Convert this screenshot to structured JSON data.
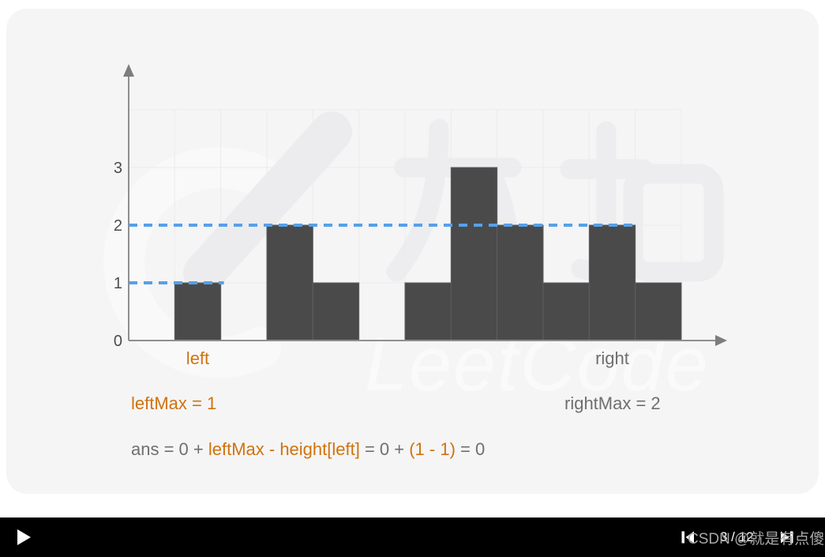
{
  "colors": {
    "card_bg": "#f5f5f6",
    "bar": "#4a4a4b",
    "bar_border": "#5e5e60",
    "grid": "#ebebec",
    "axis": "#8f8f8f",
    "arrow": "#7d7d7d",
    "dash_blue": "#58a0e6",
    "orange": "#d0730d",
    "gray_text": "#6f6f6f",
    "tick_label": "#4c4c4c",
    "player_bg": "#000000",
    "player_icon": "#ffffff",
    "csdn_watermark_gray": "#a8a8a8"
  },
  "chart_data": {
    "type": "bar",
    "title": "",
    "xlabel": "",
    "ylabel": "",
    "heights": [
      0,
      1,
      0,
      2,
      1,
      0,
      1,
      3,
      2,
      1,
      2,
      1
    ],
    "y_ticks": [
      "0",
      "1",
      "2",
      "3"
    ],
    "ylim": [
      0,
      4
    ],
    "grid": true,
    "bar_color": "#4a4a4b",
    "pointers": {
      "left": {
        "index": 1,
        "label": "left",
        "value_at_pointer": 1
      },
      "right": {
        "index": 10,
        "label": "right",
        "value_at_pointer": 2
      }
    },
    "dashed_levels": [
      {
        "meaning": "leftMax",
        "value": 1,
        "from_col": 0,
        "to_col": 2,
        "color": "#58a0e6"
      },
      {
        "meaning": "rightMax",
        "value": 2,
        "from_col": 0,
        "to_col": 11,
        "color": "#58a0e6"
      }
    ]
  },
  "annotations": {
    "left_label": "left",
    "right_label": "right",
    "left_max_text": "leftMax = 1",
    "right_max_text": "rightMax = 2",
    "ans_parts": [
      {
        "text": "ans = 0 + ",
        "color": "gray"
      },
      {
        "text": "leftMax - height[left]",
        "color": "orange"
      },
      {
        "text": " = 0 + ",
        "color": "gray"
      },
      {
        "text": "(1 - 1)",
        "color": "orange"
      },
      {
        "text": " = 0",
        "color": "gray"
      }
    ]
  },
  "player": {
    "play_icon": "play",
    "prev_icon": "skip-previous",
    "next_icon": "skip-next",
    "page_indicator": "3 / 12"
  },
  "watermarks": {
    "logo_cn_text": "力扣",
    "brand_text": "LeetCode",
    "csdn_text": "CSDN @就是有点傻"
  }
}
